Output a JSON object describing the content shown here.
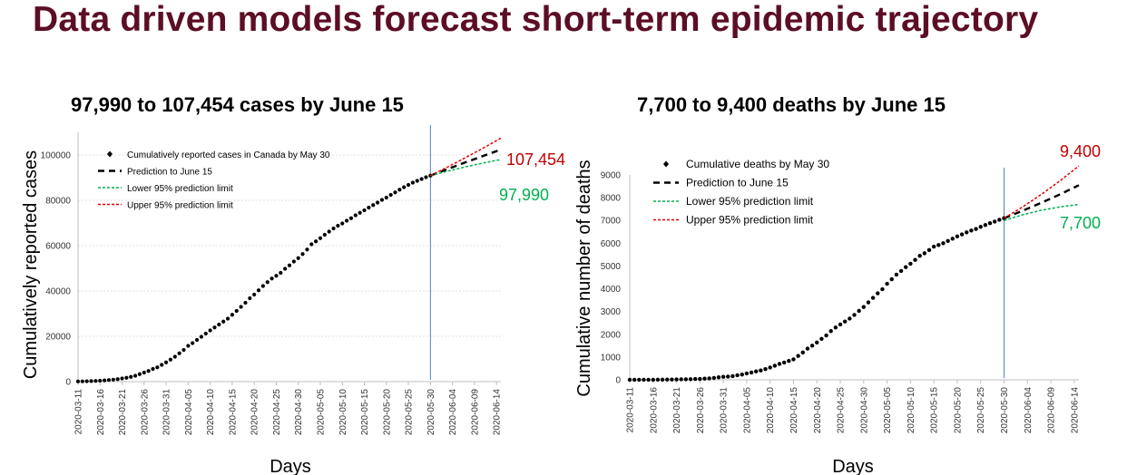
{
  "page": {
    "title": "Data driven models forecast short-term epidemic trajectory",
    "title_color": "#5c0e25"
  },
  "colors": {
    "observed": "#000000",
    "prediction": "#000000",
    "lower": "#00b050",
    "upper": "#e00000",
    "vline": "#4f81bd",
    "grid": "#d9d9d9",
    "annotation_upper": "#c00000",
    "annotation_lower": "#00b050"
  },
  "chart_data": [
    {
      "type": "line",
      "title": "97,990 to 107,454 cases by June 15",
      "xlabel": "Days",
      "ylabel": "Cumulatively reported cases",
      "ylim": [
        0,
        110000
      ],
      "yticks": [
        0,
        20000,
        40000,
        60000,
        80000,
        100000
      ],
      "ytick_labels": [
        "0",
        "20000",
        "40000",
        "60000",
        "80000",
        "100000"
      ],
      "xlim": [
        "2020-03-11",
        "2020-06-15"
      ],
      "xticks": [
        "2020-03-11",
        "2020-03-16",
        "2020-03-21",
        "2020-03-26",
        "2020-03-31",
        "2020-04-05",
        "2020-04-10",
        "2020-04-15",
        "2020-04-20",
        "2020-04-25",
        "2020-04-30",
        "2020-05-05",
        "2020-05-10",
        "2020-05-15",
        "2020-05-20",
        "2020-05-25",
        "2020-05-30",
        "2020-06-04",
        "2020-06-09",
        "2020-06-14"
      ],
      "grid": "horizontal",
      "vline_at": "2020-05-30",
      "legend": {
        "placement": "top-left",
        "entries": [
          "Cumulatively reported cases in Canada by May 30",
          "Prediction to June 15",
          "Lower 95% prediction limit",
          "Upper 95% prediction limit"
        ]
      },
      "annotations": {
        "upper": "107,454",
        "lower": "97,990"
      },
      "series": [
        {
          "name": "Cumulatively reported cases in Canada by May 30",
          "style": "points",
          "x": [
            "2020-03-11",
            "2020-03-12",
            "2020-03-13",
            "2020-03-14",
            "2020-03-15",
            "2020-03-16",
            "2020-03-17",
            "2020-03-18",
            "2020-03-19",
            "2020-03-20",
            "2020-03-21",
            "2020-03-22",
            "2020-03-23",
            "2020-03-24",
            "2020-03-25",
            "2020-03-26",
            "2020-03-27",
            "2020-03-28",
            "2020-03-29",
            "2020-03-30",
            "2020-03-31",
            "2020-04-01",
            "2020-04-02",
            "2020-04-03",
            "2020-04-04",
            "2020-04-05",
            "2020-04-06",
            "2020-04-07",
            "2020-04-08",
            "2020-04-09",
            "2020-04-10",
            "2020-04-11",
            "2020-04-12",
            "2020-04-13",
            "2020-04-14",
            "2020-04-15",
            "2020-04-16",
            "2020-04-17",
            "2020-04-18",
            "2020-04-19",
            "2020-04-20",
            "2020-04-21",
            "2020-04-22",
            "2020-04-23",
            "2020-04-24",
            "2020-04-25",
            "2020-04-26",
            "2020-04-27",
            "2020-04-28",
            "2020-04-29",
            "2020-04-30",
            "2020-05-01",
            "2020-05-02",
            "2020-05-03",
            "2020-05-04",
            "2020-05-05",
            "2020-05-06",
            "2020-05-07",
            "2020-05-08",
            "2020-05-09",
            "2020-05-10",
            "2020-05-11",
            "2020-05-12",
            "2020-05-13",
            "2020-05-14",
            "2020-05-15",
            "2020-05-16",
            "2020-05-17",
            "2020-05-18",
            "2020-05-19",
            "2020-05-20",
            "2020-05-21",
            "2020-05-22",
            "2020-05-23",
            "2020-05-24",
            "2020-05-25",
            "2020-05-26",
            "2020-05-27",
            "2020-05-28",
            "2020-05-29",
            "2020-05-30"
          ],
          "values": [
            100,
            130,
            170,
            240,
            320,
            420,
            560,
            720,
            880,
            1100,
            1400,
            1700,
            2100,
            2600,
            3300,
            4000,
            4700,
            5600,
            6300,
            7400,
            8500,
            9700,
            11000,
            12500,
            14000,
            15800,
            17000,
            18400,
            19800,
            21200,
            22600,
            23900,
            25200,
            26500,
            27800,
            29500,
            31200,
            33000,
            34800,
            36800,
            38400,
            40300,
            42200,
            43900,
            45500,
            46700,
            48000,
            49800,
            51300,
            53000,
            54500,
            56300,
            58300,
            60600,
            61900,
            63300,
            64800,
            66200,
            67600,
            68800,
            69800,
            71000,
            72100,
            73400,
            74500,
            75600,
            76800,
            77900,
            79000,
            80200,
            81200,
            82400,
            83500,
            84700,
            85800,
            86800,
            87800,
            88600,
            89400,
            90200,
            90900
          ]
        },
        {
          "name": "Prediction to June 15",
          "style": "dashed",
          "x": [
            "2020-05-30",
            "2020-06-03",
            "2020-06-07",
            "2020-06-11",
            "2020-06-15"
          ],
          "values": [
            90900,
            93900,
            96800,
            99600,
            102400
          ]
        },
        {
          "name": "Lower 95% prediction limit",
          "style": "dashed",
          "x": [
            "2020-05-30",
            "2020-06-03",
            "2020-06-07",
            "2020-06-11",
            "2020-06-15"
          ],
          "values": [
            90900,
            92900,
            94800,
            96500,
            97990
          ]
        },
        {
          "name": "Upper 95% prediction limit",
          "style": "dashed",
          "x": [
            "2020-05-30",
            "2020-06-03",
            "2020-06-07",
            "2020-06-11",
            "2020-06-15"
          ],
          "values": [
            90900,
            94800,
            98900,
            103100,
            107454
          ]
        }
      ]
    },
    {
      "type": "line",
      "title": "7,700 to 9,400 deaths by June 15",
      "xlabel": "Days",
      "ylabel": "Cumulative number of deaths",
      "ylim": [
        0,
        9000
      ],
      "yticks": [
        0,
        1000,
        2000,
        3000,
        4000,
        5000,
        6000,
        7000,
        8000,
        9000
      ],
      "ytick_labels": [
        "0",
        "1000",
        "2000",
        "3000",
        "4000",
        "5000",
        "6000",
        "7000",
        "8000",
        "9000"
      ],
      "xlim": [
        "2020-03-11",
        "2020-06-15"
      ],
      "xticks": [
        "2020-03-11",
        "2020-03-16",
        "2020-03-21",
        "2020-03-26",
        "2020-03-31",
        "2020-04-05",
        "2020-04-10",
        "2020-04-15",
        "2020-04-20",
        "2020-04-25",
        "2020-04-30",
        "2020-05-05",
        "2020-05-10",
        "2020-05-15",
        "2020-05-20",
        "2020-05-25",
        "2020-05-30",
        "2020-06-04",
        "2020-06-09",
        "2020-06-14"
      ],
      "grid": "none",
      "vline_at": "2020-05-30",
      "legend": {
        "placement": "top-left",
        "entries": [
          "Cumulative deaths by May 30",
          "Prediction to June 15",
          "Lower 95% prediction limit",
          "Upper 95% prediction limit"
        ]
      },
      "annotations": {
        "upper": "9,400",
        "lower": "7,700"
      },
      "series": [
        {
          "name": "Cumulative deaths by May 30",
          "style": "points",
          "x": [
            "2020-03-11",
            "2020-03-12",
            "2020-03-13",
            "2020-03-14",
            "2020-03-15",
            "2020-03-16",
            "2020-03-17",
            "2020-03-18",
            "2020-03-19",
            "2020-03-20",
            "2020-03-21",
            "2020-03-22",
            "2020-03-23",
            "2020-03-24",
            "2020-03-25",
            "2020-03-26",
            "2020-03-27",
            "2020-03-28",
            "2020-03-29",
            "2020-03-30",
            "2020-03-31",
            "2020-04-01",
            "2020-04-02",
            "2020-04-03",
            "2020-04-04",
            "2020-04-05",
            "2020-04-06",
            "2020-04-07",
            "2020-04-08",
            "2020-04-09",
            "2020-04-10",
            "2020-04-11",
            "2020-04-12",
            "2020-04-13",
            "2020-04-14",
            "2020-04-15",
            "2020-04-16",
            "2020-04-17",
            "2020-04-18",
            "2020-04-19",
            "2020-04-20",
            "2020-04-21",
            "2020-04-22",
            "2020-04-23",
            "2020-04-24",
            "2020-04-25",
            "2020-04-26",
            "2020-04-27",
            "2020-04-28",
            "2020-04-29",
            "2020-04-30",
            "2020-05-01",
            "2020-05-02",
            "2020-05-03",
            "2020-05-04",
            "2020-05-05",
            "2020-05-06",
            "2020-05-07",
            "2020-05-08",
            "2020-05-09",
            "2020-05-10",
            "2020-05-11",
            "2020-05-12",
            "2020-05-13",
            "2020-05-14",
            "2020-05-15",
            "2020-05-16",
            "2020-05-17",
            "2020-05-18",
            "2020-05-19",
            "2020-05-20",
            "2020-05-21",
            "2020-05-22",
            "2020-05-23",
            "2020-05-24",
            "2020-05-25",
            "2020-05-26",
            "2020-05-27",
            "2020-05-28",
            "2020-05-29",
            "2020-05-30"
          ],
          "values": [
            1,
            1,
            1,
            1,
            1,
            1,
            5,
            8,
            10,
            13,
            19,
            21,
            24,
            27,
            36,
            39,
            52,
            63,
            84,
            110,
            131,
            140,
            160,
            200,
            230,
            280,
            320,
            370,
            410,
            470,
            540,
            620,
            700,
            760,
            830,
            900,
            1050,
            1200,
            1370,
            1500,
            1640,
            1800,
            1950,
            2140,
            2300,
            2430,
            2560,
            2690,
            2850,
            3030,
            3200,
            3400,
            3600,
            3800,
            3980,
            4220,
            4420,
            4620,
            4780,
            4950,
            5100,
            5270,
            5450,
            5560,
            5700,
            5850,
            5920,
            6000,
            6100,
            6200,
            6300,
            6390,
            6480,
            6560,
            6630,
            6720,
            6800,
            6880,
            6950,
            7030,
            7100
          ]
        },
        {
          "name": "Prediction to June 15",
          "style": "dashed",
          "x": [
            "2020-05-30",
            "2020-06-03",
            "2020-06-07",
            "2020-06-11",
            "2020-06-15"
          ],
          "values": [
            7100,
            7430,
            7780,
            8150,
            8550
          ]
        },
        {
          "name": "Lower 95% prediction limit",
          "style": "dashed",
          "x": [
            "2020-05-30",
            "2020-06-03",
            "2020-06-07",
            "2020-06-11",
            "2020-06-15"
          ],
          "values": [
            7000,
            7250,
            7450,
            7600,
            7700
          ]
        },
        {
          "name": "Upper 95% prediction limit",
          "style": "dashed",
          "x": [
            "2020-05-30",
            "2020-06-03",
            "2020-06-07",
            "2020-06-11",
            "2020-06-15"
          ],
          "values": [
            7100,
            7600,
            8150,
            8750,
            9400
          ]
        }
      ]
    }
  ]
}
